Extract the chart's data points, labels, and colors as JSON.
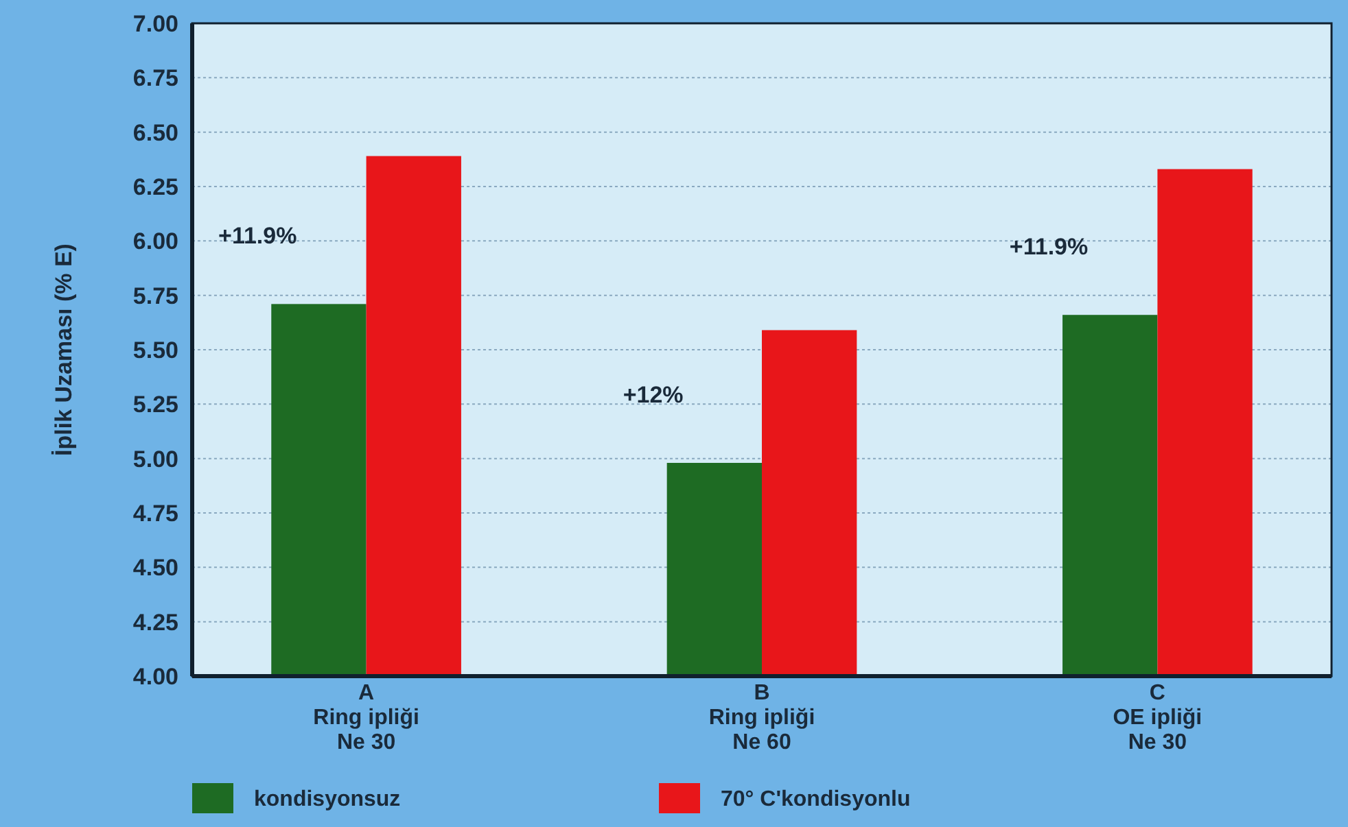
{
  "chart_data": {
    "type": "bar",
    "ylabel": "İplik Uzaması (% E)",
    "categories": [
      "A\nRing ipliği\nNe 30",
      "B\nRing ipliği\nNe 60",
      "C\nOE ipliği\nNe 30"
    ],
    "series": [
      {
        "name": "kondisyonsuz",
        "color": "#1e6b23",
        "values": [
          5.71,
          4.98,
          5.66
        ]
      },
      {
        "name": "70° C'kondisyonlu",
        "color": "#e8161a",
        "values": [
          6.39,
          5.59,
          6.33
        ]
      }
    ],
    "ylim": [
      4,
      7
    ],
    "yticks": [
      {
        "value": 4,
        "label": "4.00"
      },
      {
        "value": 4.25,
        "label": "4.25"
      },
      {
        "value": 4.5,
        "label": "4.50"
      },
      {
        "value": 4.75,
        "label": "4.75"
      },
      {
        "value": 5,
        "label": "5.00"
      },
      {
        "value": 5.25,
        "label": "5.25"
      },
      {
        "value": 5.5,
        "label": "5.50"
      },
      {
        "value": 5.75,
        "label": "5.75"
      },
      {
        "value": 6,
        "label": "6.00"
      },
      {
        "value": 6.25,
        "label": "6.25"
      },
      {
        "value": 6.5,
        "label": "6.50"
      },
      {
        "value": 6.75,
        "label": "6.75"
      },
      {
        "value": 7,
        "label": "7.00"
      }
    ],
    "grid": "y",
    "legend": "bottom",
    "annotations": [
      "+11.9%",
      "+12%",
      "+11.9%"
    ]
  }
}
